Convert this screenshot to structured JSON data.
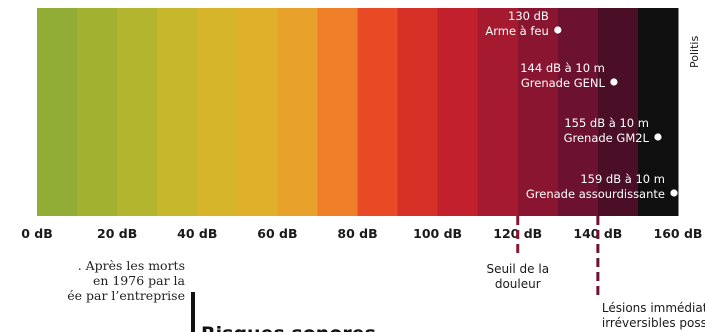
{
  "chart_data": {
    "type": "bar",
    "x_range": [
      0,
      160
    ],
    "ticks": [
      {
        "value": 0,
        "label": "0 dB"
      },
      {
        "value": 20,
        "label": "20 dB"
      },
      {
        "value": 40,
        "label": "40 dB"
      },
      {
        "value": 60,
        "label": "60 dB"
      },
      {
        "value": 80,
        "label": "80 dB"
      },
      {
        "value": 100,
        "label": "100 dB"
      },
      {
        "value": 120,
        "label": "120 dB"
      },
      {
        "value": 140,
        "label": "140 dB"
      },
      {
        "value": 160,
        "label": "160 dB"
      }
    ],
    "bands": [
      {
        "from": 0,
        "to": 10,
        "color": "#91ad35"
      },
      {
        "from": 10,
        "to": 20,
        "color": "#a3b131"
      },
      {
        "from": 20,
        "to": 30,
        "color": "#b4b52f"
      },
      {
        "from": 30,
        "to": 40,
        "color": "#c7b72c"
      },
      {
        "from": 40,
        "to": 50,
        "color": "#d6b52b"
      },
      {
        "from": 50,
        "to": 60,
        "color": "#e0b02a"
      },
      {
        "from": 60,
        "to": 70,
        "color": "#e8a22b"
      },
      {
        "from": 70,
        "to": 80,
        "color": "#f07d27"
      },
      {
        "from": 80,
        "to": 90,
        "color": "#e84a25"
      },
      {
        "from": 90,
        "to": 100,
        "color": "#d63027"
      },
      {
        "from": 100,
        "to": 110,
        "color": "#c1202c"
      },
      {
        "from": 110,
        "to": 120,
        "color": "#a51a2e"
      },
      {
        "from": 120,
        "to": 130,
        "color": "#8a1530"
      },
      {
        "from": 130,
        "to": 140,
        "color": "#6c1230"
      },
      {
        "from": 140,
        "to": 150,
        "color": "#4a0f27"
      },
      {
        "from": 150,
        "to": 160,
        "color": "#0f0f0f"
      }
    ],
    "annotations": [
      {
        "value": 130,
        "line1": "130 dB",
        "line2": "Arme à feu"
      },
      {
        "value": 144,
        "line1": "144 dB à 10 m",
        "line2": "Grenade GENL"
      },
      {
        "value": 155,
        "line1": "155 dB à 10 m",
        "line2": "Grenade GM2L"
      },
      {
        "value": 159,
        "line1": "159 dB à 10 m",
        "line2": "Grenade assourdissante"
      }
    ],
    "thresholds": [
      {
        "value": 120,
        "lines": [
          "Seuil de la",
          "douleur"
        ],
        "color": "#8a1530"
      },
      {
        "value": 140,
        "lines": [
          "Lésions immédiates et",
          "irréversibles possibles"
        ],
        "color": "#6c1230"
      }
    ]
  },
  "credit": "Politis",
  "background_text": {
    "lines": [
      ". Après les morts",
      "en 1976 par la",
      "ée par l’entreprise"
    ],
    "heading_fragment": "Risques sonores"
  }
}
